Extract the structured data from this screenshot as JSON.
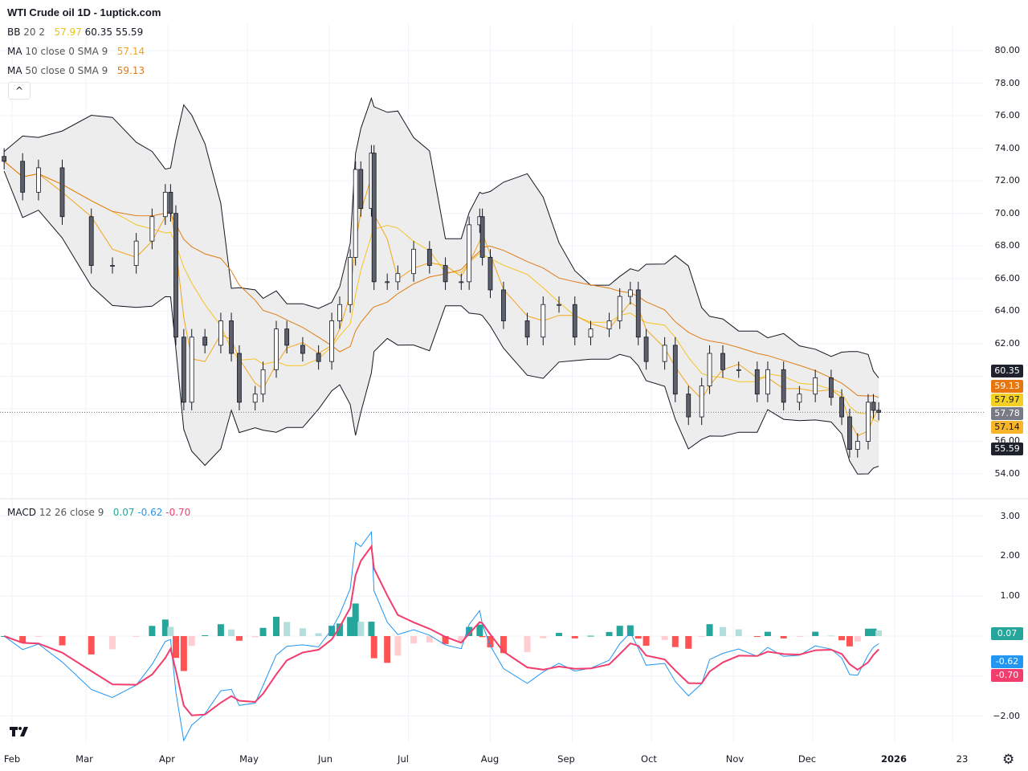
{
  "header": {
    "title": "WTI Crude oil  1D - 1uptick.com"
  },
  "legend": {
    "bb": {
      "label": "BB",
      "params": "20 2",
      "basis": "57.97",
      "upper": "60.35",
      "lower": "55.59"
    },
    "ma10": {
      "label": "MA",
      "params": "10 close 0 SMA 9",
      "value": "57.14"
    },
    "ma50": {
      "label": "MA",
      "params": "50 close 0 SMA 9",
      "value": "59.13"
    },
    "macd": {
      "label": "MACD",
      "params": "12 26 close 9",
      "hist": "0.07",
      "macd": "-0.62",
      "signal": "-0.70"
    }
  },
  "price_axis": [
    "80.00",
    "78.00",
    "76.00",
    "74.00",
    "72.00",
    "70.00",
    "68.00",
    "66.00",
    "64.00",
    "62.00",
    "56.00",
    "54.00"
  ],
  "macd_axis": [
    "3.00",
    "2.00",
    "1.00",
    "−2.00"
  ],
  "badges": {
    "upper": "60.35",
    "ma50": "59.13",
    "basis": "57.97",
    "last": "57.78",
    "ma10": "57.14",
    "lower": "55.59",
    "hist": "0.07",
    "macd": "-0.62",
    "signal": "-0.70"
  },
  "time_axis": [
    "Feb",
    "Mar",
    "Apr",
    "May",
    "Jun",
    "Jul",
    "Aug",
    "Sep",
    "Oct",
    "Nov",
    "Dec",
    "2026",
    "23"
  ],
  "colors": {
    "up": "#ffffff",
    "down": "#5d606b",
    "bb_fill": "#e8e8e8",
    "bb_line": "#131722",
    "ma10": "#f7c325",
    "ma50": "#e07b14",
    "macd": "#2196f3",
    "signal": "#f23d6d",
    "hist_up": "#26a69a",
    "hist_up_light": "#b2dfdb",
    "hist_dn": "#ff5252",
    "hist_dn_light": "#ffcdd2"
  },
  "icons": {
    "collapse": "chevron-up-icon",
    "logo": "tradingview-logo",
    "settings": "gear-icon"
  },
  "chart_data": {
    "type": "candlestick",
    "title": "WTI Crude oil  1D - 1uptick.com",
    "ylim": [
      53,
      81
    ],
    "macd_ylim": [
      -2.4,
      3.4
    ],
    "dates": [
      "2025-01-29",
      "2025-02-05",
      "2025-02-11",
      "2025-02-20",
      "2025-03-03",
      "2025-03-11",
      "2025-03-20",
      "2025-03-26",
      "2025-03-31",
      "2025-04-02",
      "2025-04-04",
      "2025-04-07",
      "2025-04-10",
      "2025-04-15",
      "2025-04-21",
      "2025-04-25",
      "2025-04-28",
      "2025-05-04",
      "2025-05-07",
      "2025-05-12",
      "2025-05-16",
      "2025-05-22",
      "2025-05-28",
      "2025-06-02",
      "2025-06-05",
      "2025-06-09",
      "2025-06-11",
      "2025-06-13",
      "2025-06-17",
      "2025-06-18",
      "2025-06-23",
      "2025-06-27",
      "2025-07-03",
      "2025-07-09",
      "2025-07-15",
      "2025-07-21",
      "2025-07-24",
      "2025-07-28",
      "2025-07-29",
      "2025-08-01",
      "2025-08-06",
      "2025-08-15",
      "2025-08-21",
      "2025-08-27",
      "2025-09-02",
      "2025-09-08",
      "2025-09-15",
      "2025-09-19",
      "2025-09-23",
      "2025-09-26",
      "2025-09-29",
      "2025-10-06",
      "2025-10-10",
      "2025-10-15",
      "2025-10-20",
      "2025-10-23",
      "2025-10-28",
      "2025-11-03",
      "2025-11-10",
      "2025-11-14",
      "2025-11-20",
      "2025-11-26",
      "2025-12-02",
      "2025-12-08",
      "2025-12-12",
      "2025-12-15",
      "2025-12-18",
      "2025-12-22",
      "2025-12-24",
      "2025-12-26"
    ],
    "close": [
      73.2,
      71.3,
      72.8,
      69.8,
      66.8,
      66.8,
      68.3,
      69.8,
      71.3,
      70.0,
      62.4,
      58.4,
      62.4,
      61.9,
      63.4,
      61.4,
      58.4,
      58.9,
      60.4,
      62.9,
      61.9,
      61.4,
      60.9,
      63.4,
      64.4,
      67.3,
      72.7,
      70.3,
      73.7,
      65.8,
      65.8,
      66.3,
      67.8,
      66.8,
      65.8,
      65.8,
      69.3,
      69.8,
      67.3,
      65.3,
      63.4,
      62.4,
      64.4,
      64.4,
      62.4,
      62.9,
      63.4,
      64.9,
      65.3,
      62.4,
      60.9,
      61.9,
      58.9,
      57.5,
      59.4,
      61.4,
      60.4,
      60.4,
      58.9,
      60.4,
      58.4,
      58.9,
      59.9,
      58.7,
      57.5,
      55.5,
      56.0,
      58.4,
      57.9,
      57.78
    ]
  }
}
